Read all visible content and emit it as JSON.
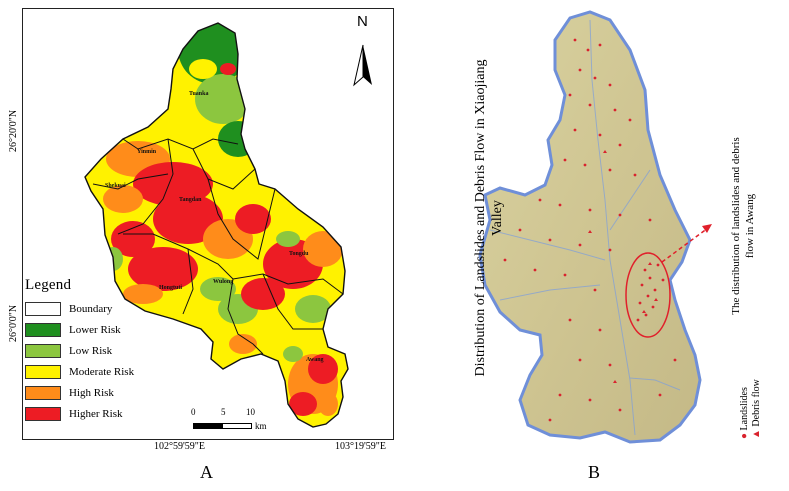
{
  "panel_a": {
    "caption": "A",
    "north_label": "N",
    "lat_labels": [
      "26°20'0\"N",
      "26°0'0\"N"
    ],
    "lon_labels": [
      "102°59'59\"E",
      "103°19'59\"E"
    ],
    "towns": [
      "Tuanka",
      "Yinmin",
      "Shekuai",
      "Tangdan",
      "Tongdu",
      "Wulong",
      "Hongtuti",
      "Awang"
    ],
    "legend": {
      "title": "Legend",
      "items": [
        {
          "label": "Boundary",
          "color": "#ffffff"
        },
        {
          "label": "Lower Risk",
          "color": "#1f8f1f"
        },
        {
          "label": "Low Risk",
          "color": "#8cc63f"
        },
        {
          "label": "Moderate Risk",
          "color": "#fff200"
        },
        {
          "label": "High Risk",
          "color": "#ff8c1a"
        },
        {
          "label": "Higher Risk",
          "color": "#ed1c24"
        }
      ]
    },
    "scale": {
      "ticks": [
        "0",
        "5",
        "10"
      ],
      "unit": "km"
    }
  },
  "panel_b": {
    "caption": "B",
    "title": "Distribution of Landslides and Debris Flow in Xiaojiang Valley",
    "annotation": "The distribution of landslides and debris flow in Awang",
    "legend": {
      "landslides": "Landslides",
      "debris_flow": "Debris flow"
    },
    "marker_color": "#d9232e"
  }
}
